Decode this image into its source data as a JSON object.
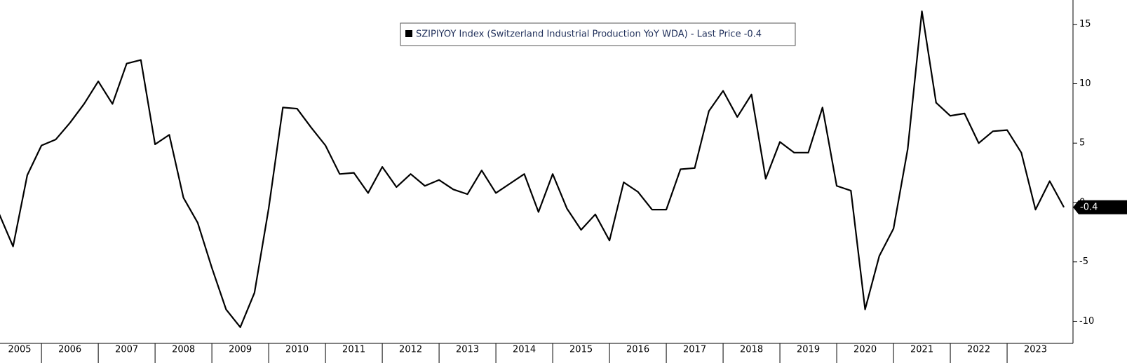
{
  "chart_data": {
    "type": "line",
    "series": [
      {
        "name": "SZIPIYOY Index (Switzerland Industrial Production YoY WDA) - Last Price -0.4",
        "color": "#000000",
        "values": [
          -0.9,
          -3.7,
          2.3,
          4.8,
          5.3,
          6.7,
          8.3,
          10.2,
          8.3,
          11.7,
          12.0,
          4.9,
          5.7,
          0.4,
          -1.7,
          -5.5,
          -9.0,
          -10.5,
          -7.6,
          -0.5,
          8.0,
          7.9,
          6.3,
          4.8,
          2.4,
          2.5,
          0.8,
          3.0,
          1.3,
          2.4,
          1.4,
          1.9,
          1.1,
          0.7,
          2.7,
          0.8,
          1.6,
          2.4,
          -0.8,
          2.4,
          -0.5,
          -2.3,
          -1.0,
          -3.2,
          1.7,
          0.9,
          -0.6,
          -0.6,
          2.8,
          2.9,
          7.7,
          9.4,
          7.2,
          9.1,
          2.0,
          5.1,
          4.2,
          4.2,
          8.0,
          1.4,
          1.0,
          -9.0,
          -4.5,
          -2.2,
          4.5,
          16.1,
          8.4,
          7.3,
          7.5,
          5.0,
          6.0,
          6.1,
          4.2,
          -0.6,
          1.8,
          -0.4
        ]
      }
    ],
    "x": [
      2005.25,
      2005.5,
      2005.75,
      2006,
      2006.25,
      2006.5,
      2006.75,
      2007,
      2007.25,
      2007.5,
      2007.75,
      2008,
      2008.25,
      2008.5,
      2008.75,
      2009,
      2009.25,
      2009.5,
      2009.75,
      2010,
      2010.25,
      2010.5,
      2010.75,
      2011,
      2011.25,
      2011.5,
      2011.75,
      2012,
      2012.25,
      2012.5,
      2012.75,
      2013,
      2013.25,
      2013.5,
      2013.75,
      2014,
      2014.25,
      2014.5,
      2014.75,
      2015,
      2015.25,
      2015.5,
      2015.75,
      2016,
      2016.25,
      2016.5,
      2016.75,
      2017,
      2017.25,
      2017.5,
      2017.75,
      2018,
      2018.25,
      2018.5,
      2018.75,
      2019,
      2019.25,
      2019.5,
      2019.75,
      2020,
      2020.25,
      2020.5,
      2020.75,
      2021,
      2021.25,
      2021.5,
      2021.75,
      2022,
      2022.25,
      2022.5,
      2022.75,
      2023,
      2023.25,
      2023.5,
      2023.75,
      2024
    ],
    "xlim": [
      2005.27,
      2024.16
    ],
    "xticks": [
      2005,
      2006,
      2007,
      2008,
      2009,
      2010,
      2011,
      2012,
      2013,
      2014,
      2015,
      2016,
      2017,
      2018,
      2019,
      2020,
      2021,
      2022,
      2023
    ],
    "ylim": [
      -11.86,
      17.05
    ],
    "yticks": [
      -10,
      -5,
      0,
      5,
      10,
      15
    ]
  }
}
